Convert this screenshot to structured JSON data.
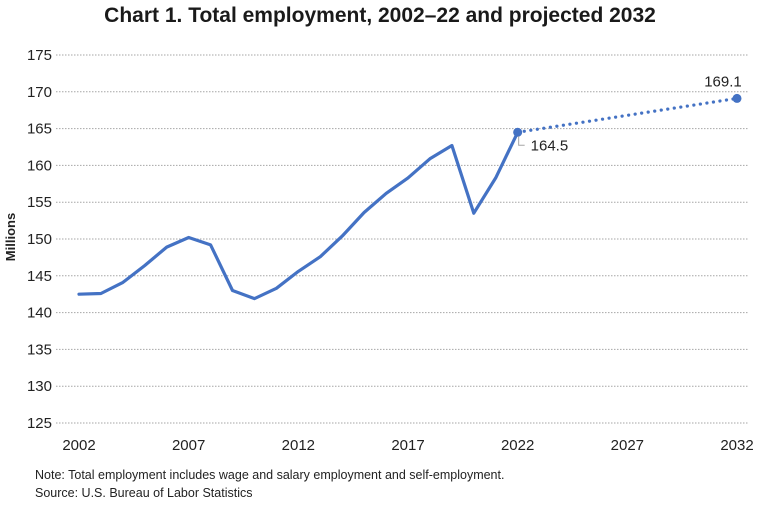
{
  "title": "Chart 1. Total employment, 2002–22 and projected 2032",
  "note": "Note: Total employment includes wage and salary employment and self-employment.",
  "source": "Source: U.S. Bureau of Labor Statistics",
  "chart_data": {
    "type": "line",
    "title": "Chart 1. Total employment, 2002–22 and projected 2032",
    "xlabel": "",
    "ylabel": "Millions",
    "xlim": [
      2002,
      2032
    ],
    "ylim": [
      125,
      175
    ],
    "xticks": [
      2002,
      2007,
      2012,
      2017,
      2022,
      2027,
      2032
    ],
    "yticks": [
      125,
      130,
      135,
      140,
      145,
      150,
      155,
      160,
      165,
      170,
      175
    ],
    "grid": "horizontal",
    "legend": "none",
    "color": "#4472c4",
    "series": [
      {
        "style": "solid",
        "x": [
          2002,
          2003,
          2004,
          2005,
          2006,
          2007,
          2008,
          2009,
          2010,
          2011,
          2012,
          2013,
          2014,
          2015,
          2016,
          2017,
          2018,
          2019,
          2020,
          2021,
          2022
        ],
        "y": [
          142.5,
          142.6,
          144.1,
          146.4,
          148.9,
          150.2,
          149.2,
          143.0,
          141.9,
          143.3,
          145.6,
          147.6,
          150.4,
          153.6,
          156.2,
          158.3,
          160.9,
          162.7,
          153.5,
          158.3,
          164.5
        ]
      },
      {
        "style": "dotted",
        "x": [
          2022,
          2032
        ],
        "y": [
          164.5,
          169.1
        ]
      }
    ],
    "data_labels": [
      {
        "x": 2022,
        "y": 164.5,
        "text": "164.5"
      },
      {
        "x": 2032,
        "y": 169.1,
        "text": "169.1"
      }
    ]
  }
}
